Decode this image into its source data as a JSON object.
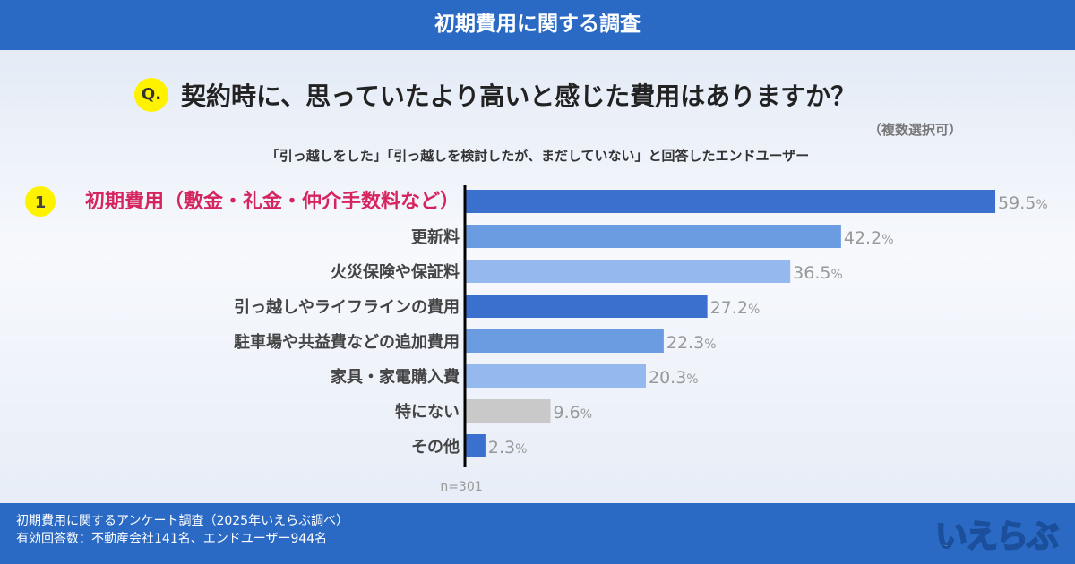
{
  "header": {
    "title": "初期費用に関する調査"
  },
  "question": {
    "badge": "Q.",
    "text": "契約時に、思っていたより高いと感じた費用はありますか？",
    "note": "（複数選択可）"
  },
  "subtitle": "「引っ越しをした」「引っ越しを検討したが、まだしていない」と回答したエンドユーザー",
  "colors": {
    "dark": "#3c70cf",
    "mid": "#6b9ce1",
    "light": "#95b9ef",
    "grey": "#c9c9c9",
    "highlight": "#d6245f",
    "rank_badge": "#fff200"
  },
  "chart_data": {
    "type": "bar",
    "orientation": "horizontal",
    "categories": [
      "初期費用（敷金・礼金・仲介手数料など）",
      "更新料",
      "火災保険や保証料",
      "引っ越しやライフラインの費用",
      "駐車場や共益費などの追加費用",
      "家具・家電購入費",
      "特にない",
      "その他"
    ],
    "values": [
      59.5,
      42.2,
      36.5,
      27.2,
      22.3,
      20.3,
      9.6,
      2.3
    ],
    "value_suffix": "%",
    "bar_colors": [
      "dark",
      "mid",
      "light",
      "dark",
      "mid",
      "light",
      "grey",
      "dark"
    ],
    "highlight": {
      "rank": "1",
      "index": 0
    },
    "xlim": [
      0,
      60
    ],
    "annotation": "n=301",
    "grid": false
  },
  "footer": {
    "line1": "初期費用に関するアンケート調査（2025年いえらぶ調べ）",
    "line2": "有効回答数：不動産会社141名、エンドユーザー944名",
    "logo": "いえらぶ"
  }
}
